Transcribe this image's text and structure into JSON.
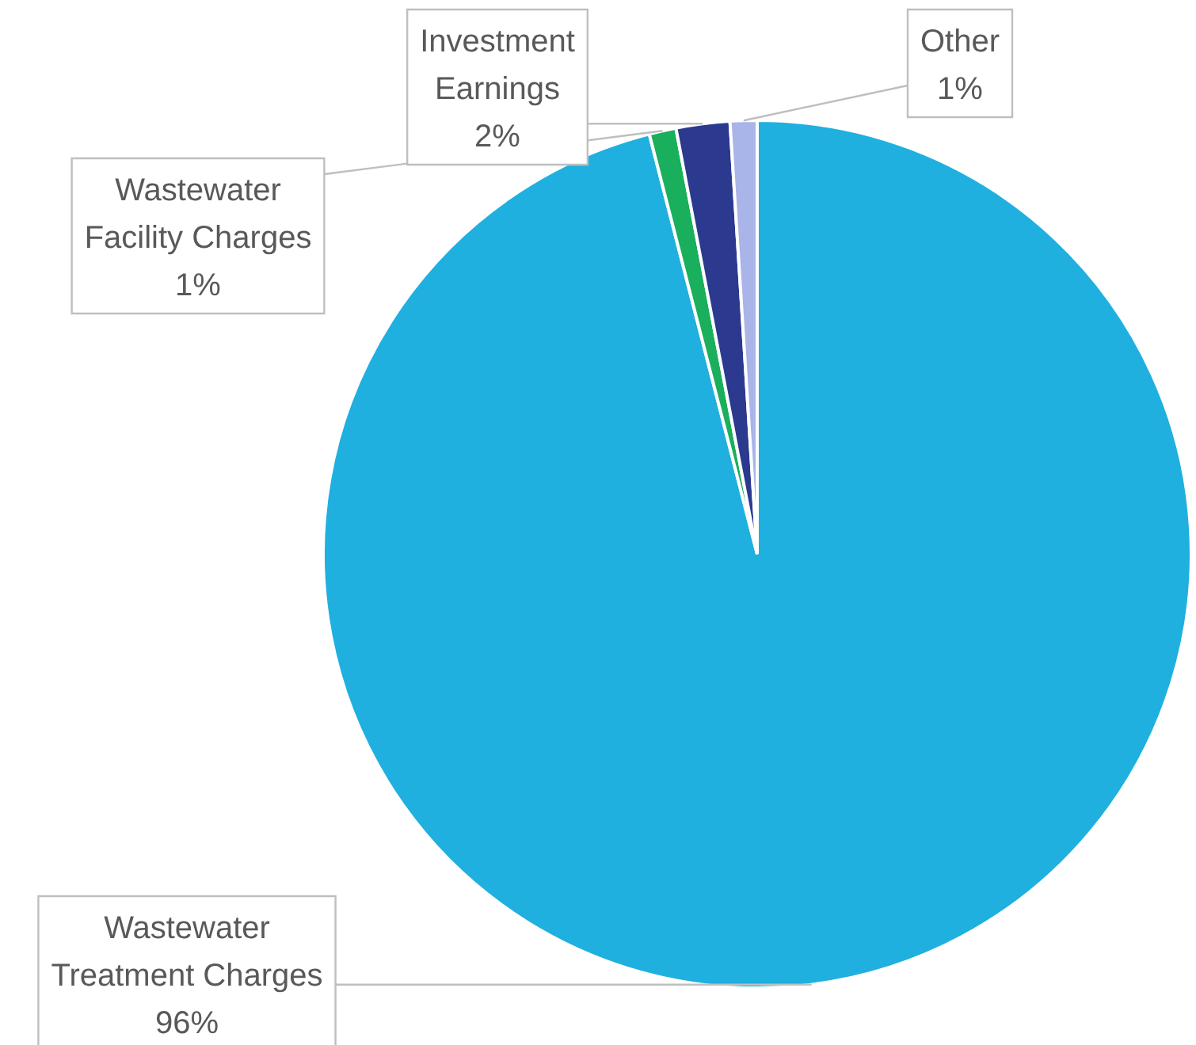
{
  "chart_data": {
    "type": "pie",
    "categories": [
      "Wastewater Treatment Charges",
      "Wastewater Facility Charges",
      "Investment Earnings",
      "Other"
    ],
    "values": [
      96,
      1,
      2,
      1
    ],
    "colors": [
      "#1fb0e0",
      "#1aaf5d",
      "#2b3a8f",
      "#a9b4e8"
    ],
    "value_labels": [
      "96%",
      "1%",
      "2%",
      "1%"
    ],
    "legend": false
  }
}
